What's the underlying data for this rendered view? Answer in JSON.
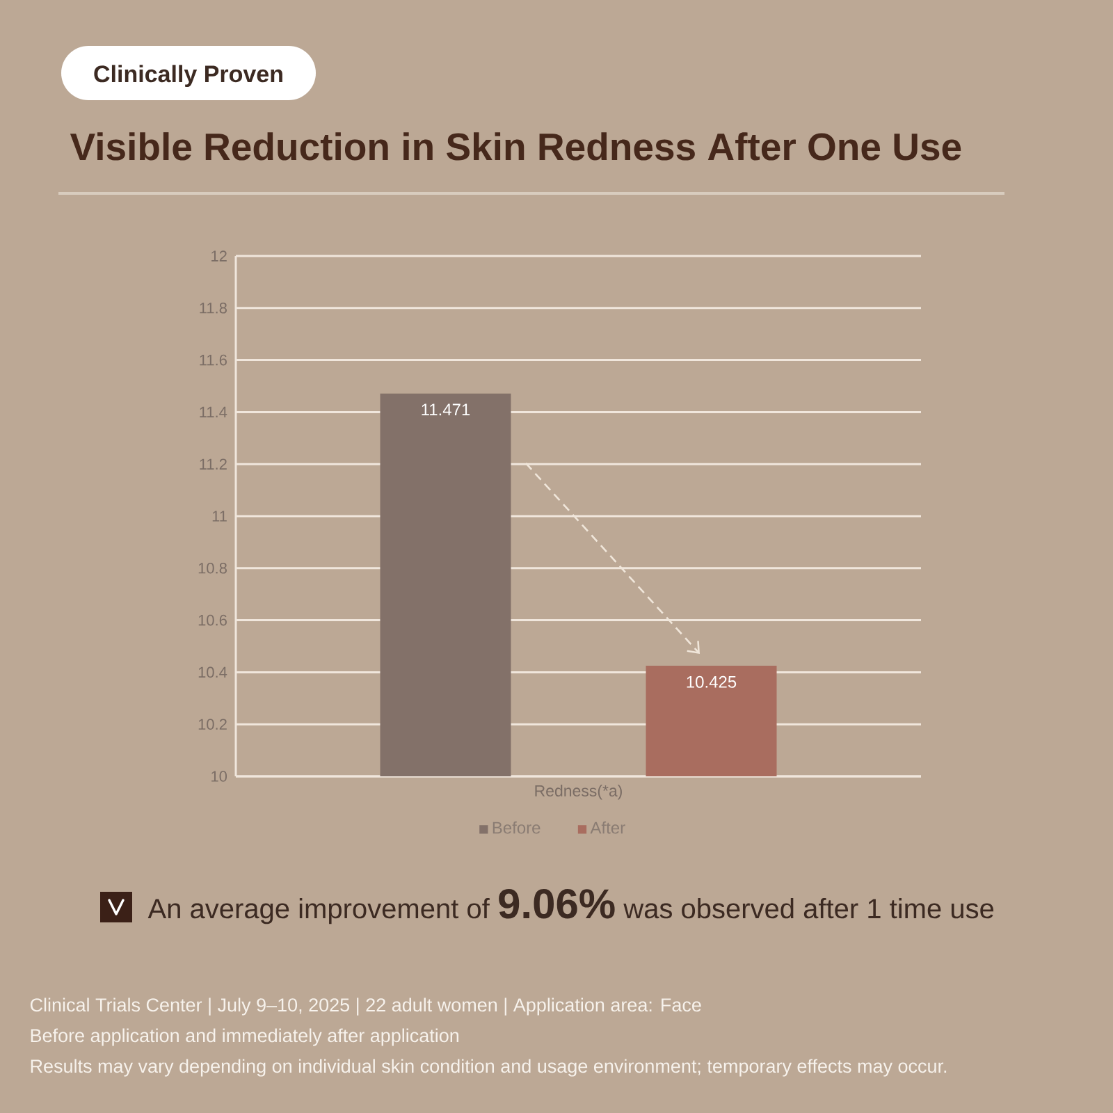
{
  "chart_data": {
    "type": "bar",
    "title": "Visible Reduction in Skin Redness After One Use",
    "categories": [
      "Redness(*a)"
    ],
    "series": [
      {
        "name": "Before",
        "color": "#837169",
        "values": [
          11.471
        ]
      },
      {
        "name": "After",
        "color": "#a96d5f",
        "values": [
          10.425
        ]
      }
    ],
    "ylim": [
      10,
      12
    ],
    "yticks": [
      10,
      10.2,
      10.4,
      10.6,
      10.8,
      11,
      11.2,
      11.4,
      11.6,
      11.8,
      12
    ],
    "grid": "y",
    "legend": "bottom",
    "data_labels": true,
    "annotations": [
      "Clinically Proven",
      "An average improvement of **9.06%** was observed after 1 time use",
      "Clinical Trials Center | July 9–10, 2025 | 22 adult women | Application area: Face",
      "Before application and immediately after application",
      "Results may vary depending on individual skin condition and usage environment; temporary effects may occur."
    ]
  }
}
